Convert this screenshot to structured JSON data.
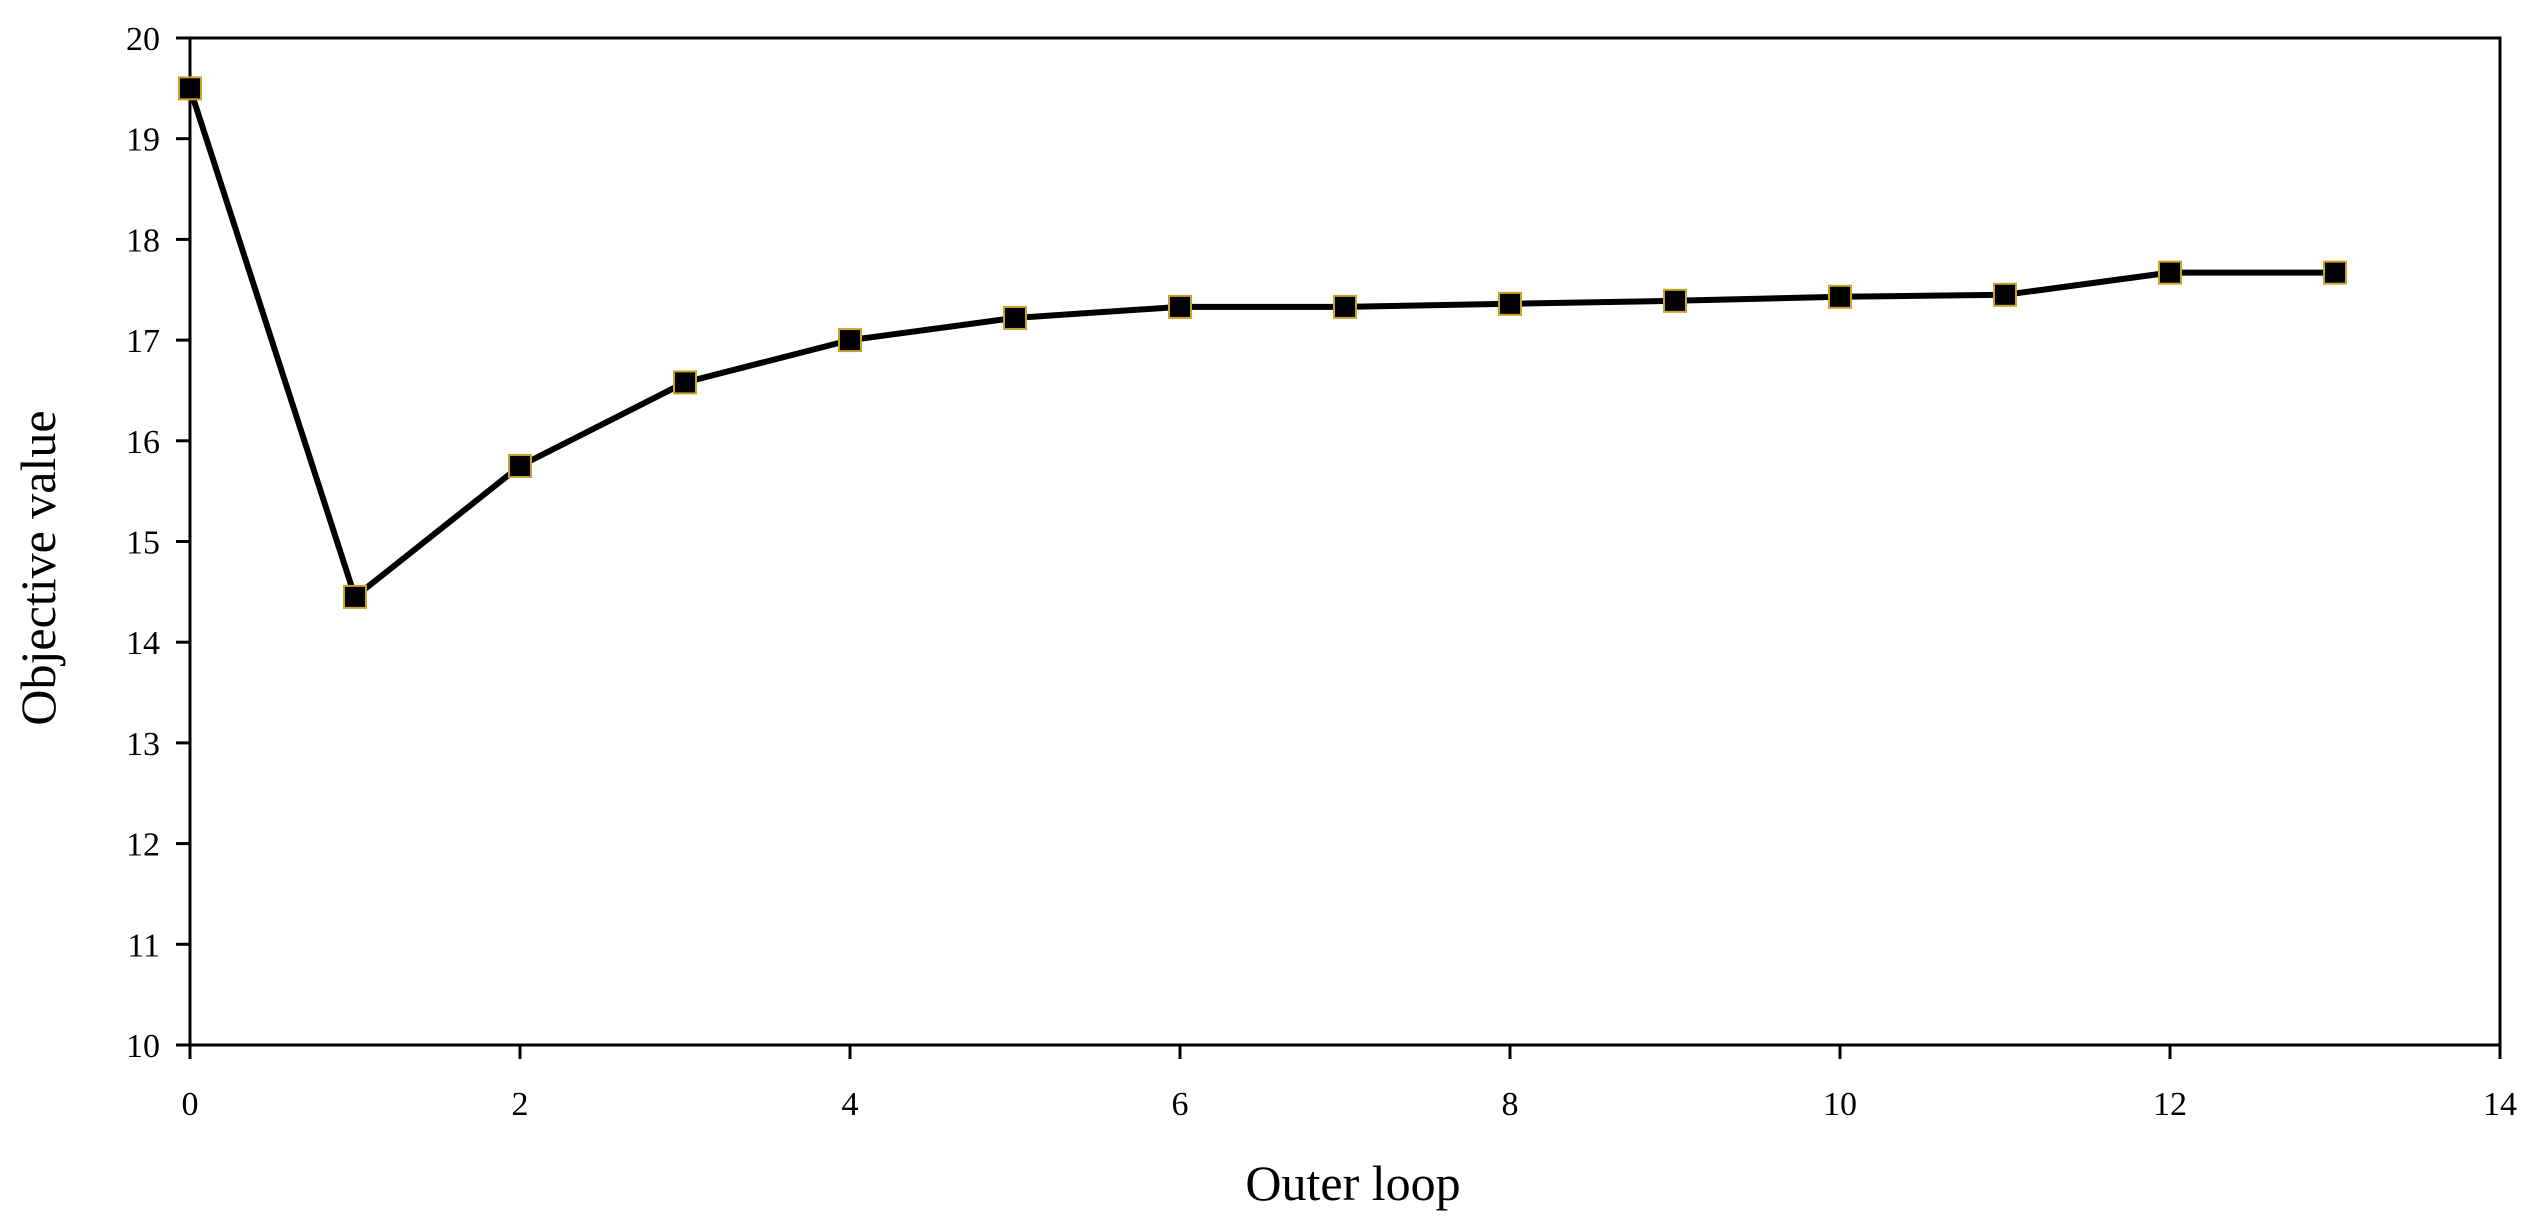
{
  "chart_data": {
    "type": "line",
    "title": "",
    "xlabel": "Outer loop",
    "ylabel": "Objective value",
    "xlim": [
      0,
      14
    ],
    "ylim": [
      10,
      20
    ],
    "xticks": [
      0,
      2,
      4,
      6,
      8,
      10,
      12,
      14
    ],
    "yticks": [
      10,
      11,
      12,
      13,
      14,
      15,
      16,
      17,
      18,
      19,
      20
    ],
    "grid": false,
    "legend": "none",
    "series": [
      {
        "marker": "square",
        "line_color": "#000000",
        "marker_color": "#000000",
        "marker_edge_color": "#c9a227",
        "x": [
          0,
          1,
          2,
          3,
          4,
          5,
          6,
          7,
          8,
          9,
          10,
          11,
          12,
          13
        ],
        "y": [
          19.5,
          14.45,
          15.75,
          16.58,
          17.0,
          17.22,
          17.33,
          17.33,
          17.36,
          17.39,
          17.43,
          17.45,
          17.67,
          17.67
        ]
      }
    ]
  }
}
